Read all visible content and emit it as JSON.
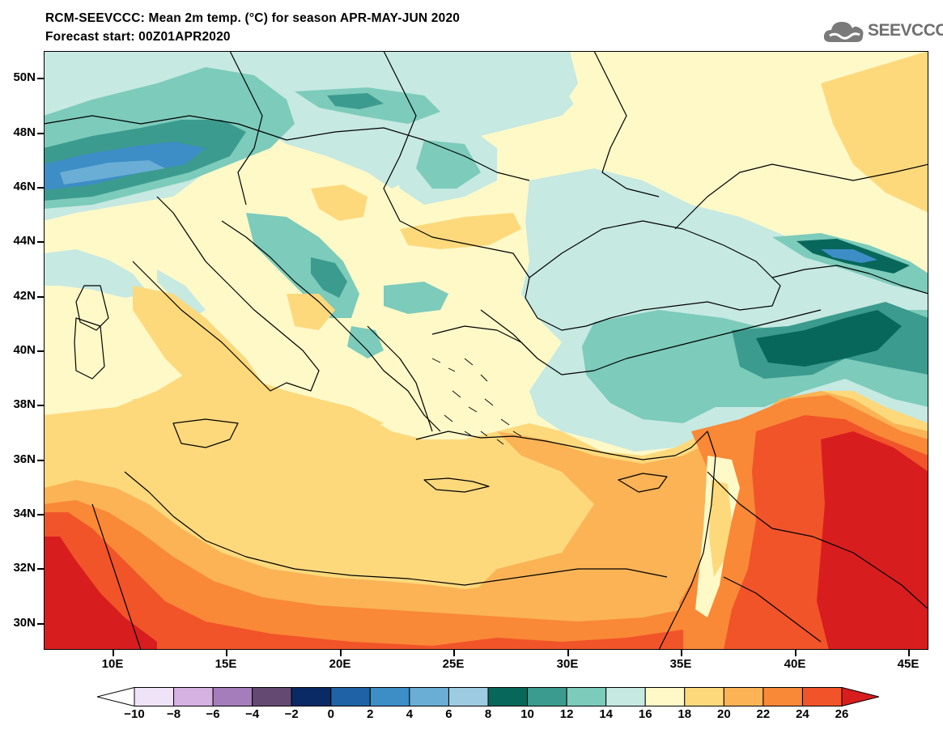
{
  "title": {
    "line1": "RCM-SEEVCCC: Mean 2m temp. (°C) for season APR-MAY-JUN 2020",
    "line2": "Forecast start: 00Z01APR2020"
  },
  "logo": {
    "text": "SEEVCCC"
  },
  "map": {
    "lat_labels": [
      "50N",
      "48N",
      "46N",
      "44N",
      "42N",
      "40N",
      "38N",
      "36N",
      "34N",
      "32N",
      "30N"
    ],
    "lon_labels": [
      "10E",
      "15E",
      "20E",
      "25E",
      "30E",
      "35E",
      "40E",
      "45E"
    ]
  },
  "colorbar": {
    "labels": [
      "−10",
      "−8",
      "−6",
      "−4",
      "−2",
      "0",
      "2",
      "4",
      "6",
      "8",
      "10",
      "12",
      "14",
      "16",
      "18",
      "20",
      "22",
      "24",
      "26"
    ],
    "colors": [
      "#ffffff",
      "#efe3f7",
      "#d6b2e3",
      "#a47dba",
      "#644a73",
      "#0a2a66",
      "#1f62a5",
      "#3d8dc6",
      "#6aaed6",
      "#9dcbe1",
      "#07675a",
      "#3b9b8e",
      "#7ccbbb",
      "#c6e9e2",
      "#fff9c8",
      "#fdd97c",
      "#fbb356",
      "#f98837",
      "#f15429",
      "#d81d1f"
    ]
  }
}
